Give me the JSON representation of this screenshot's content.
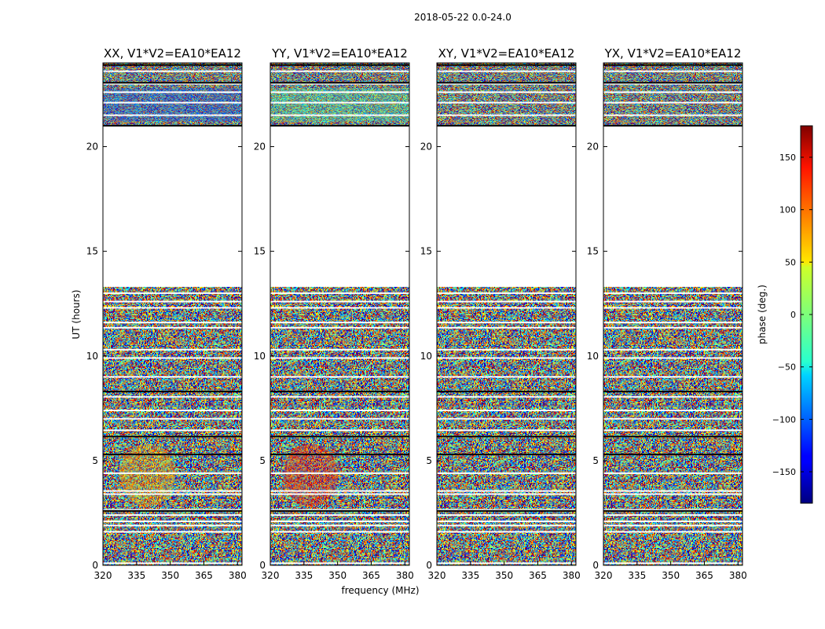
{
  "chart_data": {
    "type": "heatmap",
    "suptitle": "2018-05-22 0.0-24.0",
    "xlabel": "frequency (MHz)",
    "ylabel": "UT (hours)",
    "xlim": [
      320,
      382
    ],
    "ylim": [
      0,
      24
    ],
    "xticks": [
      320,
      335,
      350,
      365,
      380
    ],
    "yticks": [
      0,
      5,
      10,
      15,
      20
    ],
    "colormap": "jet",
    "colorbar": {
      "label": "phase (deg.)",
      "range": [
        -180,
        180
      ],
      "ticks": [
        150,
        100,
        50,
        0,
        -50,
        -100,
        -150
      ],
      "tick_labels": [
        "150",
        "100",
        "50",
        "0",
        "−50",
        "−100",
        "−150"
      ]
    },
    "panels": [
      {
        "title": "XX, V1*V2=EA10*EA12",
        "pol": "XX"
      },
      {
        "title": "YY, V1*V2=EA10*EA12",
        "pol": "YY"
      },
      {
        "title": "XY, V1*V2=EA10*EA12",
        "pol": "XY"
      },
      {
        "title": "YX, V1*V2=EA10*EA12",
        "pol": "YX"
      }
    ],
    "flagged_ut_ranges": [
      [
        13.3,
        21.0
      ]
    ],
    "missing_scans_ut": [
      0.1,
      1.6,
      1.9,
      2.1,
      2.4,
      2.65,
      3.4,
      3.55,
      4.4,
      5.3,
      6.15,
      6.45,
      7.0,
      7.4,
      8.05,
      8.3,
      9.0,
      9.9,
      10.3,
      11.35,
      11.6,
      12.3,
      12.6,
      13.0,
      21.5,
      22.1,
      22.6,
      23.0,
      23.6
    ]
  }
}
